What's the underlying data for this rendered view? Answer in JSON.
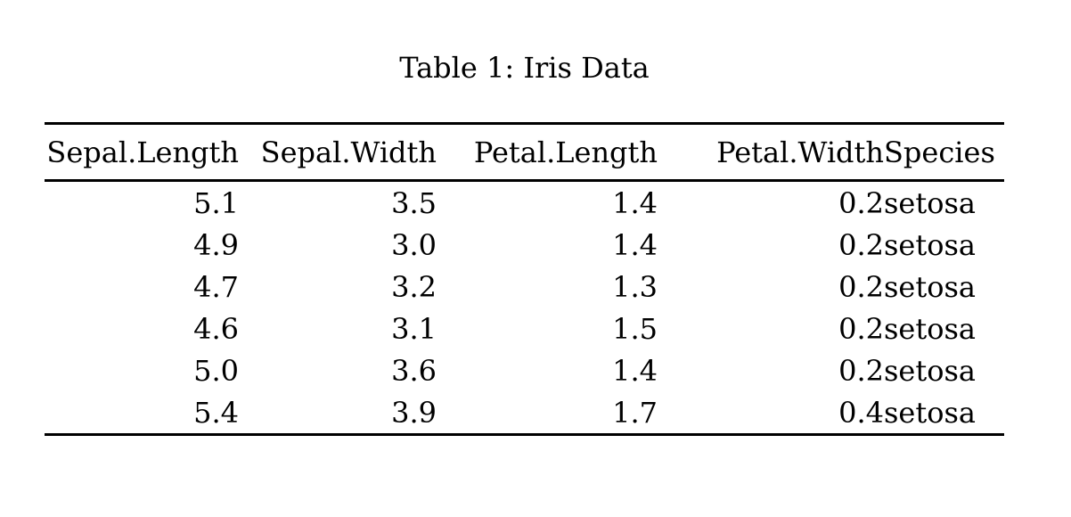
{
  "caption": {
    "text": "Table 1: Iris Data"
  },
  "table": {
    "columns": [
      "Sepal.Length",
      "Sepal.Width",
      "Petal.Length",
      "Petal.Width",
      "Species"
    ],
    "rows": [
      [
        "5.1",
        "3.5",
        "1.4",
        "0.2",
        "setosa"
      ],
      [
        "4.9",
        "3.0",
        "1.4",
        "0.2",
        "setosa"
      ],
      [
        "4.7",
        "3.2",
        "1.3",
        "0.2",
        "setosa"
      ],
      [
        "4.6",
        "3.1",
        "1.5",
        "0.2",
        "setosa"
      ],
      [
        "5.0",
        "3.6",
        "1.4",
        "0.2",
        "setosa"
      ],
      [
        "5.4",
        "3.9",
        "1.7",
        "0.4",
        "setosa"
      ]
    ]
  },
  "colors": {
    "background": "#ffffff",
    "text": "#000000",
    "rule": "#000000"
  }
}
